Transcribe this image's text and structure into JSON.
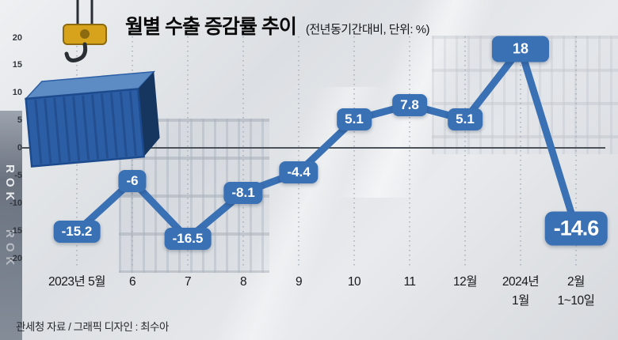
{
  "header": {
    "title": "월별 수출 증감률 추이",
    "subtitle": "(전년동기간대비, 단위: %)"
  },
  "chart_data": {
    "type": "line",
    "title": "월별 수출 증감률 추이",
    "subtitle": "(전년동기간대비, 단위: %)",
    "categories": [
      "2023년 5월",
      "6",
      "7",
      "8",
      "9",
      "10",
      "11",
      "12월",
      "2024년\n1월",
      "2월\n1~10일"
    ],
    "values": [
      -15.2,
      -6,
      -16.5,
      -8.1,
      -4.4,
      5.1,
      7.8,
      5.1,
      18,
      -14.6
    ],
    "labels": [
      "-15.2",
      "-6",
      "-16.5",
      "-8.1",
      "-4.4",
      "5.1",
      "7.8",
      "5.1",
      "18",
      "-14.6"
    ],
    "yticks": [
      20,
      15,
      10,
      5,
      0,
      -5,
      -10,
      -15,
      -20
    ],
    "ylim": [
      -22,
      22
    ],
    "line_color": "#3a70b4",
    "label_bg": "#3a70b4",
    "grid": "dotted-vertical",
    "zero_line": true,
    "legend": "none",
    "highlight_last": true
  },
  "footer": {
    "source": "관세청 자료 / 그래픽 디자인 : 최수아"
  },
  "background": {
    "left_strip_text": "ROK"
  }
}
